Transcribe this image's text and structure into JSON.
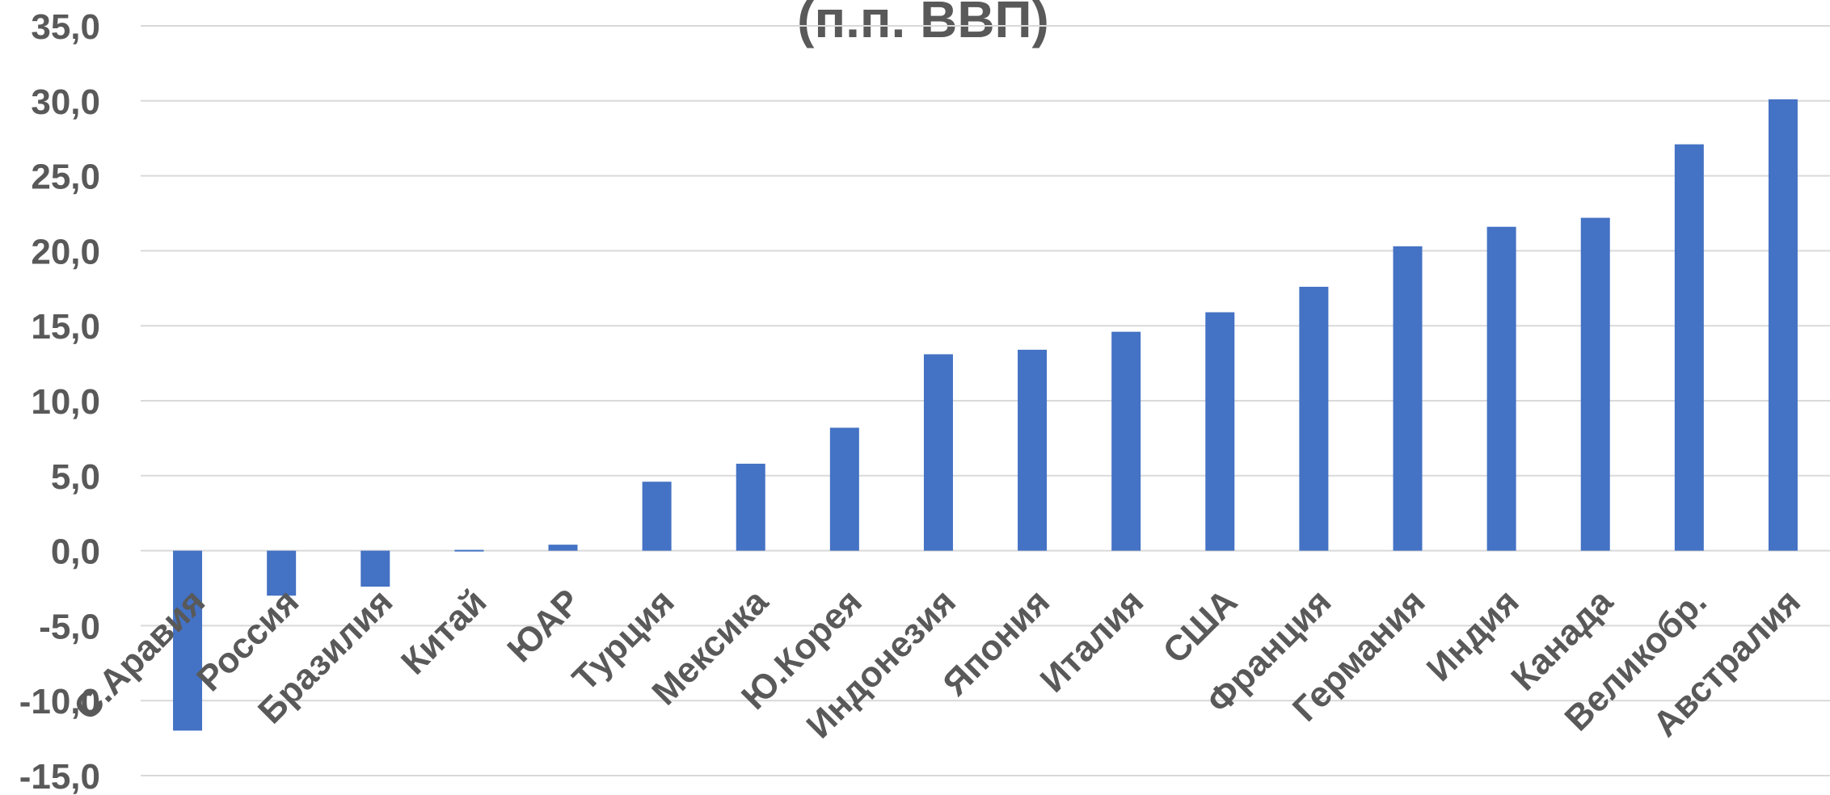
{
  "chart_data": {
    "type": "bar",
    "title": "(п.п. ВВП)",
    "xlabel": "",
    "ylabel": "",
    "ylim": [
      -15,
      35
    ],
    "ytick_step": 5,
    "ytick_labels": [
      "-15,0",
      "-10,0",
      "-5,0",
      "0,0",
      "5,0",
      "10,0",
      "15,0",
      "20,0",
      "25,0",
      "30,0",
      "35,0"
    ],
    "grid": true,
    "bar_color": "#4472C4",
    "categories": [
      "С.Аравия",
      "Россия",
      "Бразилия",
      "Китай",
      "ЮАР",
      "Турция",
      "Мексика",
      "Ю.Корея",
      "Индонезия",
      "Япония",
      "Италия",
      "США",
      "Франция",
      "Германия",
      "Индия",
      "Канада",
      "Великобр.",
      "Австралия"
    ],
    "values": [
      -12.0,
      -3.0,
      -2.4,
      0.0,
      0.4,
      4.6,
      5.8,
      8.2,
      13.1,
      13.4,
      14.6,
      15.9,
      17.6,
      20.3,
      21.6,
      22.2,
      27.1,
      30.1
    ]
  }
}
